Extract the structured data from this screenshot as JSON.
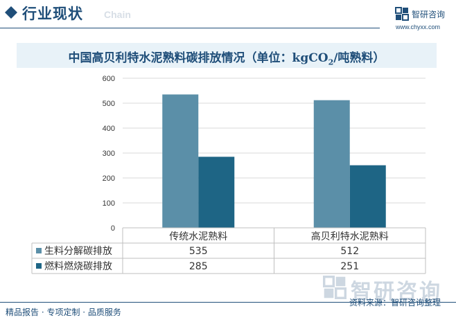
{
  "header": {
    "section_title": "行业现状",
    "background_word": "Chain",
    "brand_name": "智研咨询",
    "brand_url": "www.chyxx.com",
    "accent_color": "#1f4e79"
  },
  "chart_title": {
    "main": "中国高贝利特水泥熟料碳排放情况（单位：kgCO",
    "subscript": "2",
    "tail": "/吨熟料）"
  },
  "chart_data": {
    "type": "bar",
    "title": "中国高贝利特水泥熟料碳排放情况（单位：kgCO2/吨熟料）",
    "categories": [
      "传统水泥熟料",
      "高贝利特水泥熟料"
    ],
    "series": [
      {
        "name": "生料分解碳排放",
        "values": [
          535,
          512
        ],
        "color": "#5b8fa8"
      },
      {
        "name": "燃料燃烧碳排放",
        "values": [
          285,
          251
        ],
        "color": "#1e6585"
      }
    ],
    "ylim": [
      0,
      600
    ],
    "yticks": [
      0,
      100,
      200,
      300,
      400,
      500,
      600
    ],
    "grid": true,
    "legend": "data-table"
  },
  "footer": {
    "left_text": "精品报告 · 专项定制 · 品质服务",
    "source": "资料来源：智研咨询整理",
    "watermark": "智研咨询"
  }
}
